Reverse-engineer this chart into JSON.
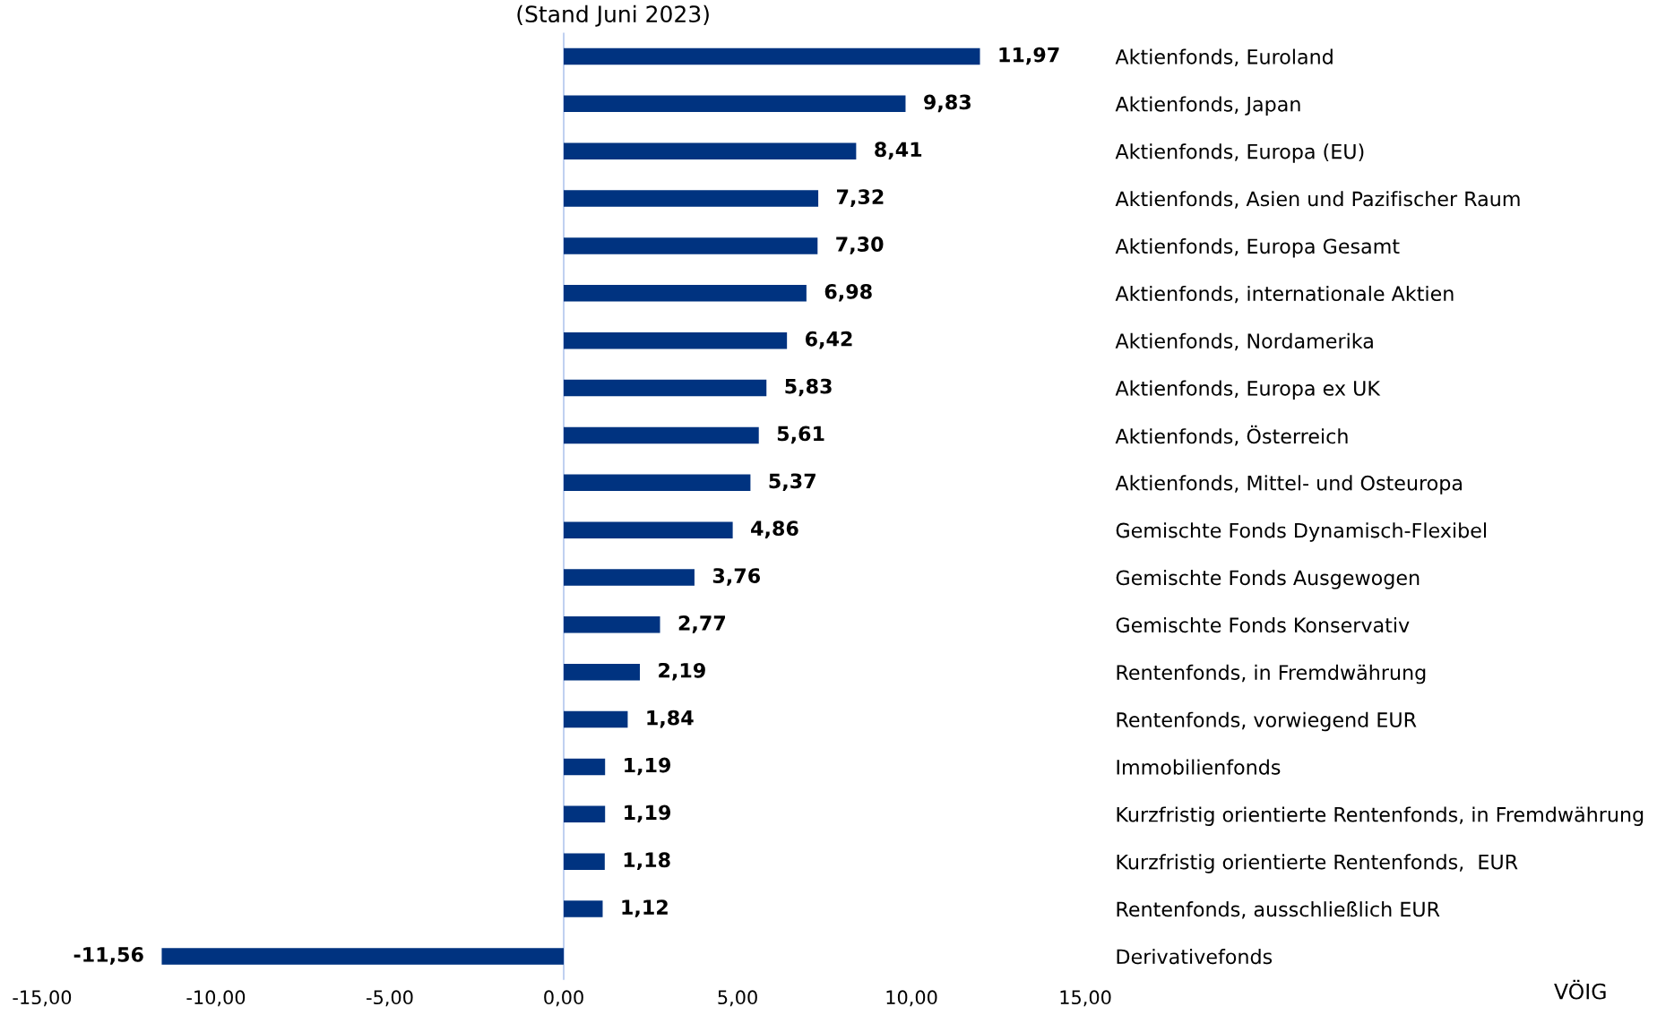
{
  "chart_data": {
    "type": "bar",
    "orientation": "horizontal",
    "subtitle": "(Stand Juni 2023)",
    "categories": [
      "Aktienfonds, Euroland",
      "Aktienfonds, Japan",
      "Aktienfonds, Europa (EU)",
      "Aktienfonds, Asien und Pazifischer Raum",
      "Aktienfonds, Europa Gesamt",
      "Aktienfonds, internationale Aktien",
      "Aktienfonds, Nordamerika",
      "Aktienfonds, Europa ex UK",
      "Aktienfonds, Österreich",
      "Aktienfonds, Mittel- und Osteuropa",
      "Gemischte Fonds Dynamisch-Flexibel",
      "Gemischte Fonds Ausgewogen",
      "Gemischte Fonds Konservativ",
      "Rentenfonds, in Fremdwährung",
      "Rentenfonds, vorwiegend EUR",
      "Immobilienfonds",
      "Kurzfristig orientierte Rentenfonds, in Fremdwährung",
      "Kurzfristig orientierte Rentenfonds,  EUR",
      "Rentenfonds, ausschließlich EUR",
      "Derivativefonds"
    ],
    "values": [
      11.97,
      9.83,
      8.41,
      7.32,
      7.3,
      6.98,
      6.42,
      5.83,
      5.61,
      5.37,
      4.86,
      3.76,
      2.77,
      2.19,
      1.84,
      1.19,
      1.19,
      1.18,
      1.12,
      -11.56
    ],
    "value_labels": [
      "11,97",
      "9,83",
      "8,41",
      "7,32",
      "7,30",
      "6,98",
      "6,42",
      "5,83",
      "5,61",
      "5,37",
      "4,86",
      "3,76",
      "2,77",
      "2,19",
      "1,84",
      "1,19",
      "1,19",
      "1,18",
      "1,12",
      "-11,56"
    ],
    "color": "#003380",
    "xlim": [
      -15,
      15
    ],
    "xticks": [
      {
        "value": -15,
        "label": "-15,00"
      },
      {
        "value": -10,
        "label": "-10,00"
      },
      {
        "value": -5,
        "label": "-5,00"
      },
      {
        "value": 0,
        "label": "0,00"
      },
      {
        "value": 5,
        "label": "5,00"
      },
      {
        "value": 10,
        "label": "10,00"
      },
      {
        "value": 15,
        "label": "15,00"
      }
    ],
    "grid": false,
    "ref_lines": [
      {
        "axis": "x",
        "value": 0,
        "color": "#b4c8ee"
      }
    ],
    "annotations": [
      "VÖIG"
    ]
  }
}
